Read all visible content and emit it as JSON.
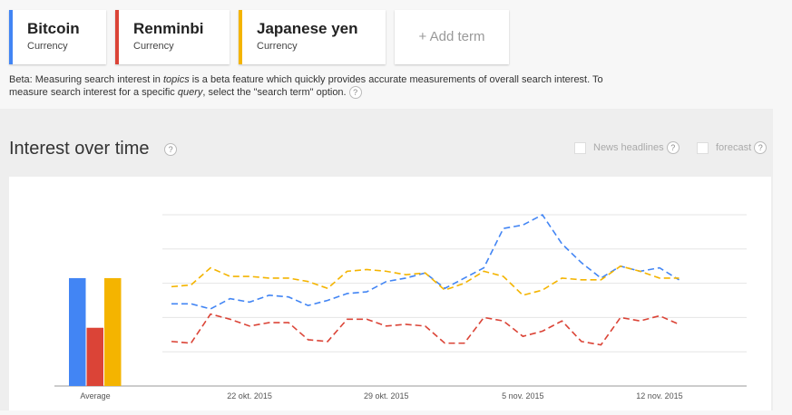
{
  "terms": [
    {
      "name": "Bitcoin",
      "kind": "Currency",
      "color": "#4285f4"
    },
    {
      "name": "Renminbi",
      "kind": "Currency",
      "color": "#db4437"
    },
    {
      "name": "Japanese yen",
      "kind": "Currency",
      "color": "#f4b400"
    }
  ],
  "add_term": "+ Add term",
  "beta_note": [
    "Beta: Measuring search interest in ",
    "topics",
    " is a beta feature which quickly provides accurate measurements of overall search interest. To measure search interest for a specific ",
    "query",
    ", select the \"search term\" option."
  ],
  "help": "?",
  "section_title": "Interest over time",
  "options": [
    "News headlines",
    "forecast"
  ],
  "chart_data": {
    "type": "line",
    "average_label": "Average",
    "categories": [
      null,
      null,
      null,
      null,
      "22 okt. 2015",
      null,
      null,
      null,
      null,
      null,
      null,
      "29 okt. 2015",
      null,
      null,
      null,
      null,
      null,
      null,
      "5 nov. 2015",
      null,
      null,
      null,
      null,
      null,
      null,
      "12 nov. 2015",
      null
    ],
    "series": [
      {
        "name": "Bitcoin",
        "color": "#4285f4",
        "average": 63,
        "values": [
          48,
          48,
          45,
          51,
          49,
          53,
          52,
          47,
          50,
          54,
          55,
          61,
          63,
          66,
          57,
          63,
          69,
          92,
          94,
          100,
          83,
          72,
          63,
          70,
          67,
          69,
          62
        ]
      },
      {
        "name": "Renminbi",
        "color": "#db4437",
        "average": 34,
        "values": [
          26,
          25,
          42,
          39,
          35,
          37,
          37,
          27,
          26,
          39,
          39,
          35,
          36,
          35,
          25,
          25,
          40,
          38,
          29,
          32,
          38,
          26,
          24,
          40,
          38,
          41,
          36
        ]
      },
      {
        "name": "Japanese yen",
        "color": "#f4b400",
        "average": 63,
        "values": [
          58,
          59,
          69,
          64,
          64,
          63,
          63,
          61,
          57,
          67,
          68,
          67,
          65,
          66,
          56,
          60,
          67,
          64,
          53,
          56,
          63,
          62,
          62,
          70,
          67,
          63,
          63
        ]
      }
    ],
    "ylim": [
      0,
      100
    ],
    "yticks": [
      0,
      20,
      40,
      60,
      80,
      100
    ],
    "grid": true,
    "dashed": true
  }
}
